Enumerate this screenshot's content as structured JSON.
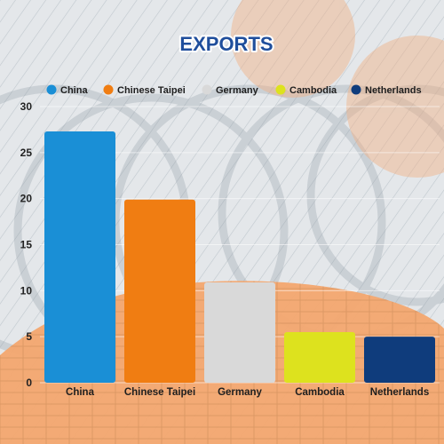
{
  "chart_data": {
    "type": "bar",
    "title": "EXPORTS",
    "categories": [
      "China",
      "Chinese Taipei",
      "Germany",
      "Cambodia",
      "Netherlands"
    ],
    "values": [
      27.3,
      19.9,
      10.9,
      5.5,
      5.0
    ],
    "colors": [
      "#1a8fd6",
      "#f07d12",
      "#d9d9d9",
      "#dde21e",
      "#0f3c7c"
    ],
    "yticks": [
      "0",
      "5",
      "10",
      "15",
      "20",
      "25",
      "30"
    ],
    "ylim": [
      0,
      30
    ],
    "grid": true,
    "legend_position": "top"
  }
}
